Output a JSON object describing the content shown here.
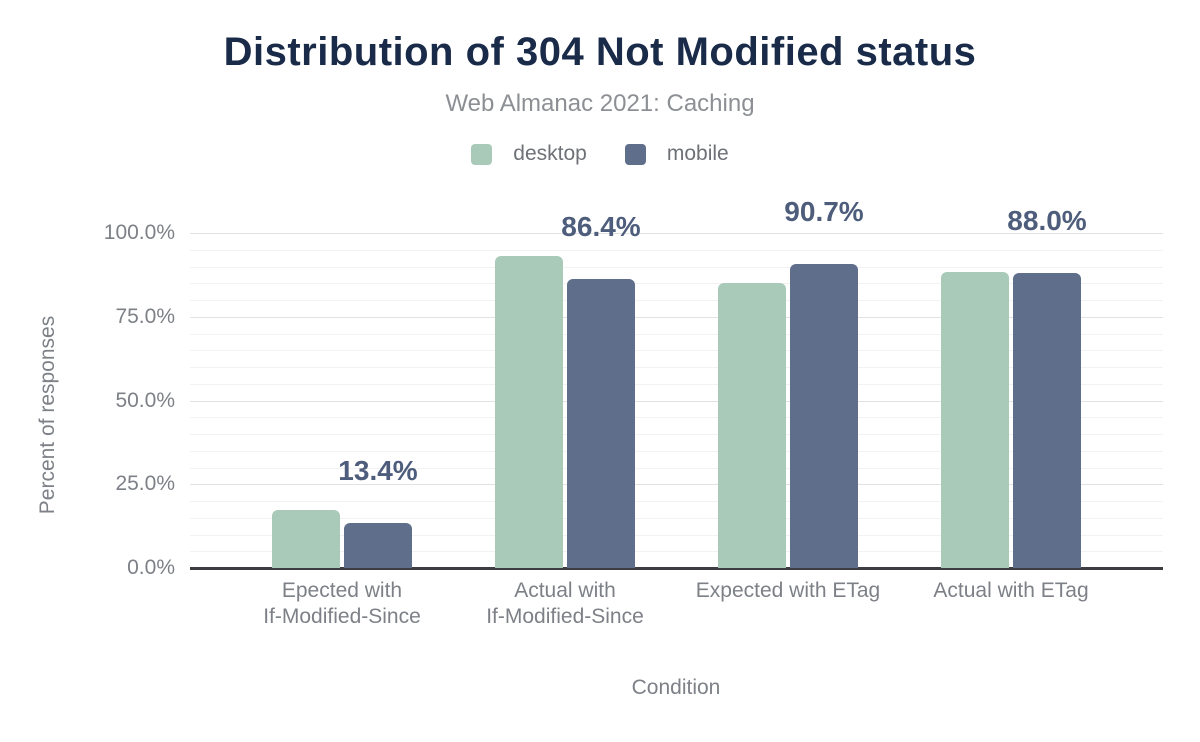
{
  "header": {
    "title": "Distribution of 304 Not Modified status",
    "subtitle": "Web Almanac 2021: Caching"
  },
  "chart_data": {
    "type": "bar",
    "title": "Distribution of 304 Not Modified status",
    "subtitle": "Web Almanac 2021: Caching",
    "categories": [
      "Epected with\nIf-Modified-Since",
      "Actual with\nIf-Modified-Since",
      "Expected with ETag",
      "Actual with ETag"
    ],
    "series": [
      {
        "name": "desktop",
        "color": "#a9cab9",
        "values": [
          17.3,
          93.0,
          85.0,
          88.5
        ]
      },
      {
        "name": "mobile",
        "color": "#5f6e8b",
        "values": [
          13.4,
          86.4,
          90.7,
          88.0
        ]
      }
    ],
    "data_labels": {
      "on_series": "mobile",
      "values": [
        "13.4%",
        "86.4%",
        "90.7%",
        "88.0%"
      ]
    },
    "xlabel": "Condition",
    "ylabel": "Percent of responses",
    "y_ticks": [
      "0.0%",
      "25.0%",
      "50.0%",
      "75.0%",
      "100.0%"
    ],
    "y_tick_values": [
      0,
      25,
      50,
      75,
      100
    ],
    "ylim": [
      0,
      100
    ],
    "grid": {
      "major_step": 25,
      "minor_step": 5,
      "grid_on": true
    },
    "legend_position": "top"
  },
  "colors": {
    "title": "#1a2b49",
    "subtitle": "#8c8f94",
    "axis_text": "#7d8187",
    "legend_text": "#6e7277",
    "data_label": "#4d5d7b",
    "gridline_major": "#e2e2e2",
    "gridline_minor": "#f2f2f2",
    "axis_line": "#3b3d42",
    "background": "#ffffff"
  }
}
